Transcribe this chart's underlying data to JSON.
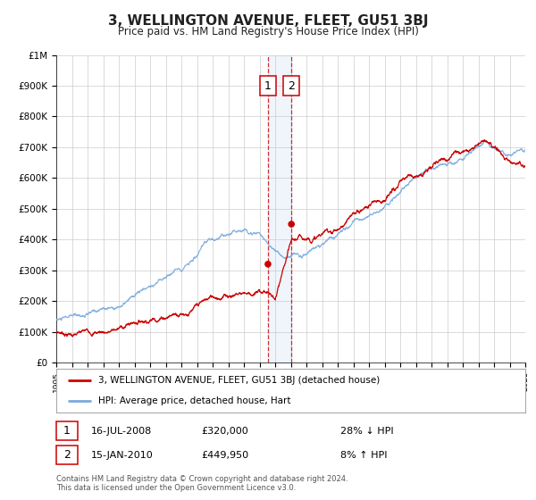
{
  "title": "3, WELLINGTON AVENUE, FLEET, GU51 3BJ",
  "subtitle": "Price paid vs. HM Land Registry's House Price Index (HPI)",
  "title_color": "#222222",
  "bg_color": "#ffffff",
  "plot_bg_color": "#ffffff",
  "grid_color": "#cccccc",
  "red_line_color": "#cc0000",
  "blue_line_color": "#7aaadd",
  "sale1_date": 2008.54,
  "sale1_price": 320000,
  "sale1_label": "16-JUL-2008",
  "sale1_hpi_text": "28% ↓ HPI",
  "sale2_date": 2010.04,
  "sale2_price": 449950,
  "sale2_label": "15-JAN-2010",
  "sale2_hpi_text": "8% ↑ HPI",
  "xmin": 1995,
  "xmax": 2025,
  "ymin": 0,
  "ymax": 1000000,
  "yticks": [
    0,
    100000,
    200000,
    300000,
    400000,
    500000,
    600000,
    700000,
    800000,
    900000,
    1000000
  ],
  "ytick_labels": [
    "£0",
    "£100K",
    "£200K",
    "£300K",
    "£400K",
    "£500K",
    "£600K",
    "£700K",
    "£800K",
    "£900K",
    "£1M"
  ],
  "legend_label_red": "3, WELLINGTON AVENUE, FLEET, GU51 3BJ (detached house)",
  "legend_label_blue": "HPI: Average price, detached house, Hart",
  "footer_text": "Contains HM Land Registry data © Crown copyright and database right 2024.\nThis data is licensed under the Open Government Licence v3.0.",
  "shade_x1": 2008.54,
  "shade_x2": 2010.04
}
